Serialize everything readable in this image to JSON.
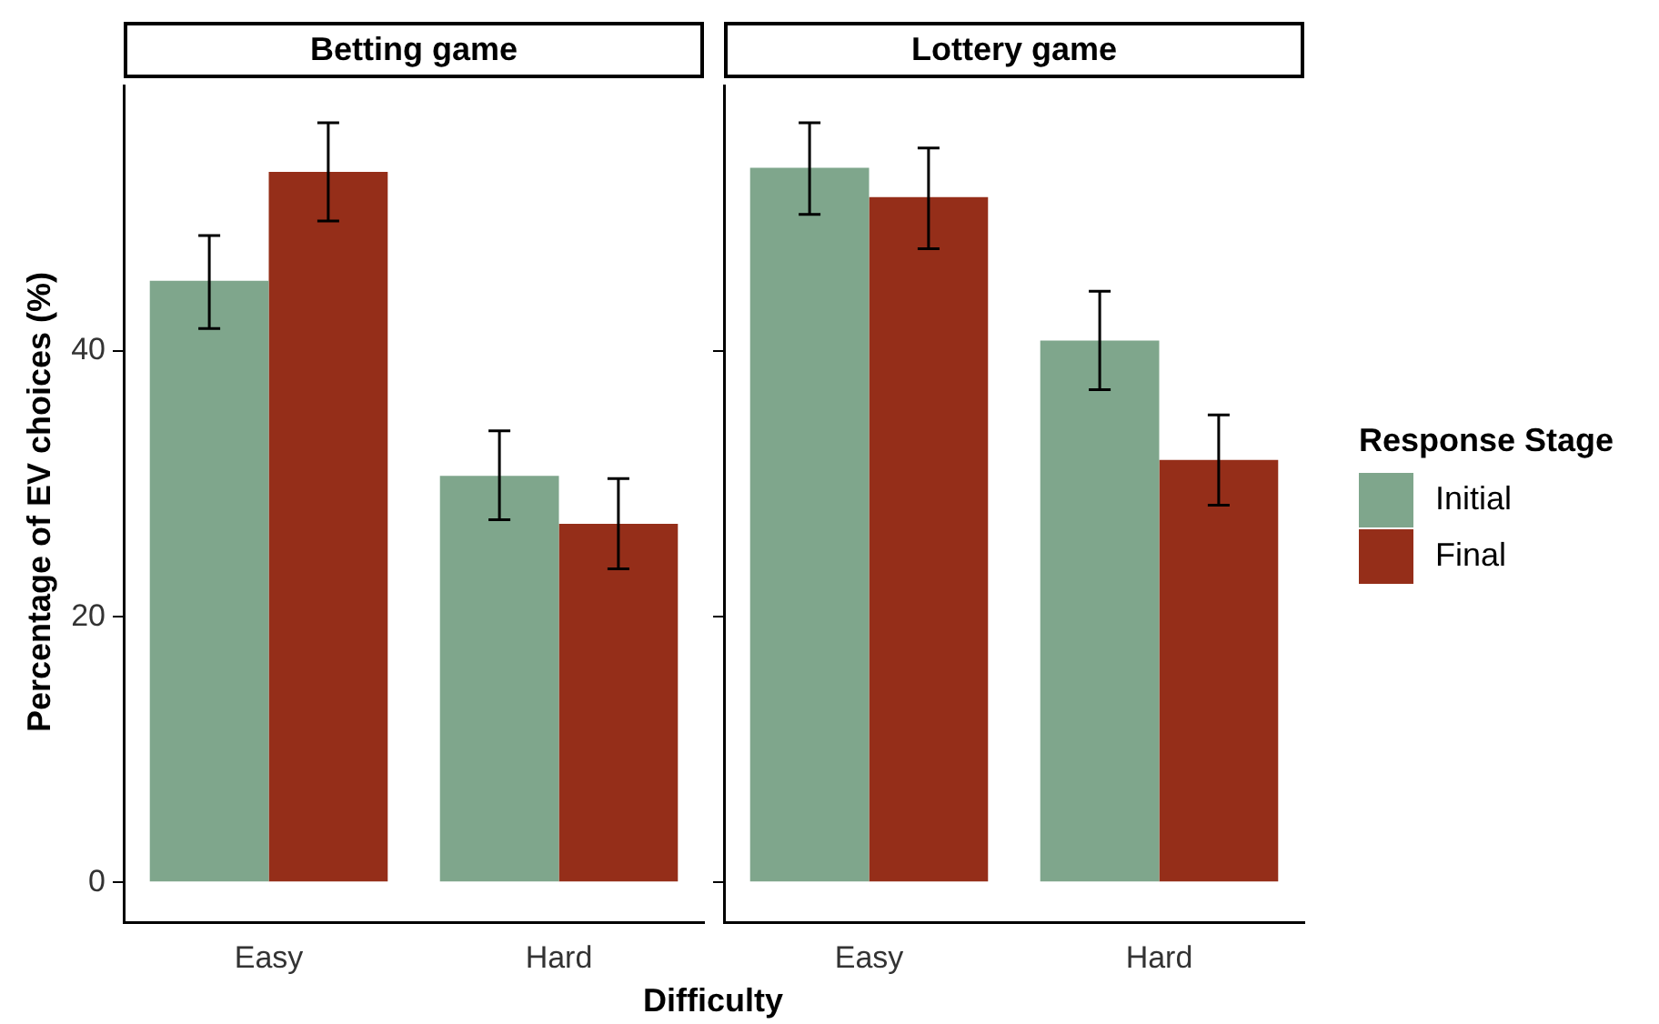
{
  "chart_data": [
    {
      "type": "bar",
      "title": "Betting game",
      "xlabel": "Difficulty",
      "ylabel": "Percentage of EV choices (%)",
      "categories": [
        "Easy",
        "Hard"
      ],
      "series": [
        {
          "name": "Initial",
          "color": "#7fa68c",
          "values": [
            45.3,
            30.6
          ],
          "errors": [
            [
              41.7,
              48.7
            ],
            [
              27.3,
              34.0
            ]
          ]
        },
        {
          "name": "Final",
          "color": "#952e19",
          "values": [
            53.5,
            27.0
          ],
          "errors": [
            [
              49.8,
              57.2
            ],
            [
              23.6,
              30.4
            ]
          ]
        }
      ],
      "ylim": [
        -3,
        60
      ],
      "yticks": [
        0,
        20,
        40
      ],
      "legend": "right",
      "legend_title": "Response Stage"
    },
    {
      "type": "bar",
      "title": "Lottery game",
      "categories": [
        "Easy",
        "Hard"
      ],
      "series": [
        {
          "color": "#7fa68c",
          "values": [
            53.8,
            40.8
          ],
          "errors": [
            [
              50.3,
              57.2
            ],
            [
              37.1,
              44.5
            ]
          ]
        },
        {
          "color": "#952e19",
          "values": [
            51.6,
            31.8
          ],
          "errors": [
            [
              47.7,
              55.3
            ],
            [
              28.4,
              35.2
            ]
          ]
        }
      ],
      "ylim": [
        -3,
        60
      ],
      "yticks": [
        0,
        20,
        40
      ],
      "tick_labels": "x"
    }
  ]
}
